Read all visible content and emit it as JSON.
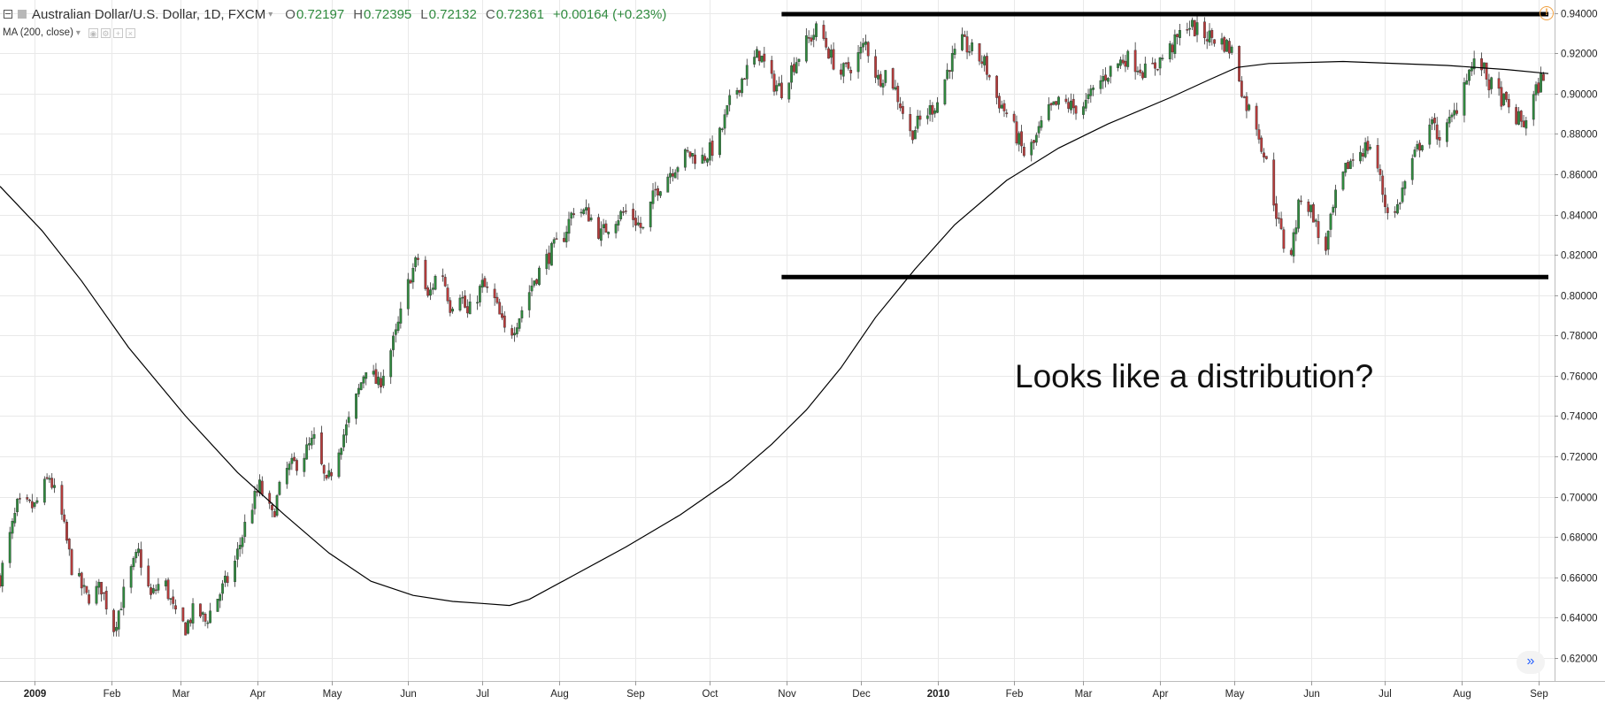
{
  "header": {
    "symbol": "Australian Dollar/U.S. Dollar, 1D, FXCM",
    "ohlc": [
      {
        "label": "O",
        "value": "0.72197"
      },
      {
        "label": "H",
        "value": "0.72395"
      },
      {
        "label": "L",
        "value": "0.72132"
      },
      {
        "label": "C",
        "value": "0.72361"
      }
    ],
    "change": "+0.00164 (+0.23%)",
    "indicator": "MA (200, close)"
  },
  "annotation": "Looks like a distribution?",
  "colors": {
    "up": "#2f8a3e",
    "down": "#b83b3b",
    "ma": "#000000",
    "levels": "#000000",
    "grid": "#e9e9e9",
    "alert": "#f0a040",
    "scroll": "#2962ff"
  },
  "icons": {
    "alert": "alert-icon",
    "scroll": "double-chevron-right-icon",
    "collapse": "collapse-icon"
  },
  "chart_data": {
    "type": "candlestick",
    "price_axis": {
      "ylim": [
        0.6085,
        0.9465
      ],
      "ticks": [
        "0.94000",
        "0.92000",
        "0.90000",
        "0.88000",
        "0.86000",
        "0.84000",
        "0.82000",
        "0.80000",
        "0.78000",
        "0.76000",
        "0.74000",
        "0.72000",
        "0.70000",
        "0.68000",
        "0.66000",
        "0.64000",
        "0.62000"
      ]
    },
    "time_axis": {
      "range": [
        "2008-12-18",
        "2010-09-05"
      ],
      "labels": [
        {
          "date": "2009-01-01",
          "text": "2009",
          "bold": true
        },
        {
          "date": "2009-02-01",
          "text": "Feb"
        },
        {
          "date": "2009-03-01",
          "text": "Mar"
        },
        {
          "date": "2009-04-01",
          "text": "Apr"
        },
        {
          "date": "2009-05-01",
          "text": "May"
        },
        {
          "date": "2009-06-01",
          "text": "Jun"
        },
        {
          "date": "2009-07-01",
          "text": "Jul"
        },
        {
          "date": "2009-08-01",
          "text": "Aug"
        },
        {
          "date": "2009-09-01",
          "text": "Sep"
        },
        {
          "date": "2009-10-01",
          "text": "Oct"
        },
        {
          "date": "2009-11-01",
          "text": "Nov"
        },
        {
          "date": "2009-12-01",
          "text": "Dec"
        },
        {
          "date": "2010-01-01",
          "text": "2010",
          "bold": true
        },
        {
          "date": "2010-02-01",
          "text": "Feb"
        },
        {
          "date": "2010-03-01",
          "text": "Mar"
        },
        {
          "date": "2010-04-01",
          "text": "Apr"
        },
        {
          "date": "2010-05-01",
          "text": "May"
        },
        {
          "date": "2010-06-01",
          "text": "Jun"
        },
        {
          "date": "2010-07-01",
          "text": "Jul"
        },
        {
          "date": "2010-08-01",
          "text": "Aug"
        },
        {
          "date": "2010-09-01",
          "text": "Sep"
        }
      ]
    },
    "close_path": [
      [
        "2008-12-18",
        0.66
      ],
      [
        "2008-12-25",
        0.695
      ],
      [
        "2009-01-01",
        0.695
      ],
      [
        "2009-01-07",
        0.71
      ],
      [
        "2009-01-12",
        0.69
      ],
      [
        "2009-01-16",
        0.665
      ],
      [
        "2009-01-22",
        0.65
      ],
      [
        "2009-01-28",
        0.655
      ],
      [
        "2009-02-02",
        0.635
      ],
      [
        "2009-02-08",
        0.66
      ],
      [
        "2009-02-12",
        0.672
      ],
      [
        "2009-02-17",
        0.65
      ],
      [
        "2009-02-22",
        0.66
      ],
      [
        "2009-02-27",
        0.64
      ],
      [
        "2009-03-03",
        0.635
      ],
      [
        "2009-03-07",
        0.645
      ],
      [
        "2009-03-11",
        0.638
      ],
      [
        "2009-03-16",
        0.65
      ],
      [
        "2009-03-22",
        0.663
      ],
      [
        "2009-03-28",
        0.69
      ],
      [
        "2009-04-02",
        0.705
      ],
      [
        "2009-04-07",
        0.69
      ],
      [
        "2009-04-12",
        0.712
      ],
      [
        "2009-04-18",
        0.718
      ],
      [
        "2009-04-24",
        0.728
      ],
      [
        "2009-04-29",
        0.705
      ],
      [
        "2009-05-04",
        0.725
      ],
      [
        "2009-05-09",
        0.74
      ],
      [
        "2009-05-15",
        0.765
      ],
      [
        "2009-05-20",
        0.755
      ],
      [
        "2009-05-27",
        0.78
      ],
      [
        "2009-06-02",
        0.81
      ],
      [
        "2009-06-05",
        0.818
      ],
      [
        "2009-06-09",
        0.798
      ],
      [
        "2009-06-14",
        0.816
      ],
      [
        "2009-06-18",
        0.795
      ],
      [
        "2009-06-22",
        0.802
      ],
      [
        "2009-06-25",
        0.79
      ],
      [
        "2009-07-01",
        0.805
      ],
      [
        "2009-07-06",
        0.797
      ],
      [
        "2009-07-11",
        0.778
      ],
      [
        "2009-07-16",
        0.79
      ],
      [
        "2009-07-22",
        0.808
      ],
      [
        "2009-07-28",
        0.82
      ],
      [
        "2009-08-03",
        0.83
      ],
      [
        "2009-08-07",
        0.843
      ],
      [
        "2009-08-13",
        0.84
      ],
      [
        "2009-08-18",
        0.83
      ],
      [
        "2009-08-23",
        0.838
      ],
      [
        "2009-08-29",
        0.842
      ],
      [
        "2009-09-04",
        0.832
      ],
      [
        "2009-09-09",
        0.852
      ],
      [
        "2009-09-16",
        0.863
      ],
      [
        "2009-09-22",
        0.87
      ],
      [
        "2009-09-28",
        0.868
      ],
      [
        "2009-10-04",
        0.875
      ],
      [
        "2009-10-09",
        0.895
      ],
      [
        "2009-10-15",
        0.91
      ],
      [
        "2009-10-21",
        0.92
      ],
      [
        "2009-10-26",
        0.906
      ],
      [
        "2009-10-30",
        0.902
      ],
      [
        "2009-11-04",
        0.915
      ],
      [
        "2009-11-09",
        0.925
      ],
      [
        "2009-11-14",
        0.933
      ],
      [
        "2009-11-19",
        0.918
      ],
      [
        "2009-11-23",
        0.91
      ],
      [
        "2009-11-28",
        0.915
      ],
      [
        "2009-12-03",
        0.925
      ],
      [
        "2009-12-08",
        0.907
      ],
      [
        "2009-12-12",
        0.912
      ],
      [
        "2009-12-17",
        0.895
      ],
      [
        "2009-12-21",
        0.88
      ],
      [
        "2009-12-26",
        0.888
      ],
      [
        "2010-01-01",
        0.896
      ],
      [
        "2010-01-06",
        0.915
      ],
      [
        "2010-01-11",
        0.925
      ],
      [
        "2010-01-16",
        0.92
      ],
      [
        "2010-01-20",
        0.915
      ],
      [
        "2010-01-25",
        0.898
      ],
      [
        "2010-01-30",
        0.888
      ],
      [
        "2010-02-05",
        0.87
      ],
      [
        "2010-02-09",
        0.875
      ],
      [
        "2010-02-14",
        0.89
      ],
      [
        "2010-02-20",
        0.896
      ],
      [
        "2010-02-25",
        0.893
      ],
      [
        "2010-03-02",
        0.895
      ],
      [
        "2010-03-07",
        0.905
      ],
      [
        "2010-03-12",
        0.912
      ],
      [
        "2010-03-18",
        0.918
      ],
      [
        "2010-03-22",
        0.915
      ],
      [
        "2010-03-27",
        0.91
      ],
      [
        "2010-04-02",
        0.918
      ],
      [
        "2010-04-07",
        0.925
      ],
      [
        "2010-04-12",
        0.935
      ],
      [
        "2010-04-17",
        0.93
      ],
      [
        "2010-04-22",
        0.928
      ],
      [
        "2010-04-27",
        0.925
      ],
      [
        "2010-05-01",
        0.92
      ],
      [
        "2010-05-05",
        0.897
      ],
      [
        "2010-05-10",
        0.885
      ],
      [
        "2010-05-15",
        0.86
      ],
      [
        "2010-05-19",
        0.835
      ],
      [
        "2010-05-23",
        0.815
      ],
      [
        "2010-05-28",
        0.85
      ],
      [
        "2010-06-02",
        0.84
      ],
      [
        "2010-06-06",
        0.818
      ],
      [
        "2010-06-11",
        0.848
      ],
      [
        "2010-06-16",
        0.865
      ],
      [
        "2010-06-21",
        0.872
      ],
      [
        "2010-06-26",
        0.875
      ],
      [
        "2010-07-01",
        0.845
      ],
      [
        "2010-07-05",
        0.84
      ],
      [
        "2010-07-10",
        0.86
      ],
      [
        "2010-07-15",
        0.875
      ],
      [
        "2010-07-19",
        0.885
      ],
      [
        "2010-07-24",
        0.878
      ],
      [
        "2010-07-29",
        0.89
      ],
      [
        "2010-08-03",
        0.91
      ],
      [
        "2010-08-08",
        0.917
      ],
      [
        "2010-08-12",
        0.905
      ],
      [
        "2010-08-17",
        0.898
      ],
      [
        "2010-08-21",
        0.89
      ],
      [
        "2010-08-26",
        0.885
      ],
      [
        "2010-08-30",
        0.898
      ],
      [
        "2010-09-04",
        0.913
      ]
    ],
    "moving_average": {
      "name": "MA (200, close)",
      "points": [
        [
          "2008-12-18",
          0.854
        ],
        [
          "2009-01-04",
          0.832
        ],
        [
          "2009-01-20",
          0.807
        ],
        [
          "2009-02-08",
          0.774
        ],
        [
          "2009-03-03",
          0.74
        ],
        [
          "2009-03-24",
          0.712
        ],
        [
          "2009-04-12",
          0.691
        ],
        [
          "2009-04-30",
          0.672
        ],
        [
          "2009-05-17",
          0.658
        ],
        [
          "2009-06-03",
          0.651
        ],
        [
          "2009-06-19",
          0.648
        ],
        [
          "2009-07-01",
          0.647
        ],
        [
          "2009-07-12",
          0.646
        ],
        [
          "2009-07-20",
          0.649
        ],
        [
          "2009-08-07",
          0.661
        ],
        [
          "2009-08-28",
          0.675
        ],
        [
          "2009-09-19",
          0.691
        ],
        [
          "2009-10-09",
          0.708
        ],
        [
          "2009-10-26",
          0.726
        ],
        [
          "2009-11-09",
          0.743
        ],
        [
          "2009-11-23",
          0.764
        ],
        [
          "2009-12-07",
          0.789
        ],
        [
          "2009-12-23",
          0.813
        ],
        [
          "2010-01-08",
          0.835
        ],
        [
          "2010-01-29",
          0.857
        ],
        [
          "2010-02-19",
          0.873
        ],
        [
          "2010-03-11",
          0.885
        ],
        [
          "2010-04-05",
          0.898
        ],
        [
          "2010-04-21",
          0.907
        ],
        [
          "2010-05-02",
          0.913
        ],
        [
          "2010-05-15",
          0.915
        ],
        [
          "2010-06-14",
          0.916
        ],
        [
          "2010-07-26",
          0.914
        ],
        [
          "2010-08-19",
          0.912
        ],
        [
          "2010-09-05",
          0.91
        ]
      ]
    },
    "levels": [
      {
        "name": "resistance",
        "value": 0.9395,
        "from": "2009-10-30",
        "to": "2010-09-05"
      },
      {
        "name": "support",
        "value": 0.809,
        "from": "2009-10-30",
        "to": "2010-09-05"
      }
    ]
  }
}
